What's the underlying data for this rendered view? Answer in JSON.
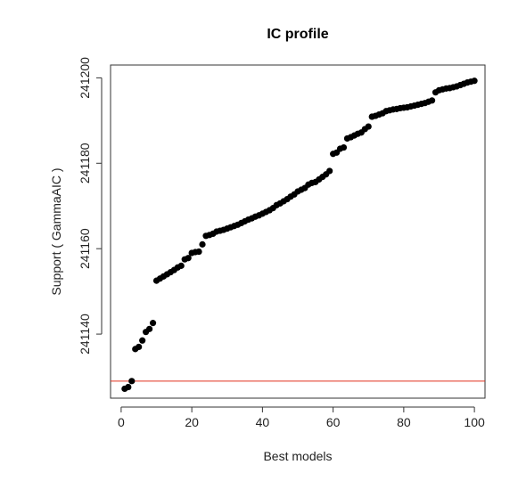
{
  "chart_data": {
    "type": "scatter",
    "title": "IC profile",
    "xlabel": "Best models",
    "ylabel": "Support ( GammaAIC )",
    "xlim": [
      -3,
      103
    ],
    "ylim": [
      241125,
      241203
    ],
    "x_ticks": [
      0,
      20,
      40,
      60,
      80,
      100
    ],
    "y_ticks": [
      241140,
      241160,
      241180,
      241200
    ],
    "grid": false,
    "point_color": "#000000",
    "reference_line": {
      "y": 241129,
      "color": "#e0301e"
    },
    "x": [
      1,
      2,
      3,
      4,
      5,
      6,
      7,
      8,
      9,
      10,
      11,
      12,
      13,
      14,
      15,
      16,
      17,
      18,
      19,
      20,
      21,
      22,
      23,
      24,
      25,
      26,
      27,
      28,
      29,
      30,
      31,
      32,
      33,
      34,
      35,
      36,
      37,
      38,
      39,
      40,
      41,
      42,
      43,
      44,
      45,
      46,
      47,
      48,
      49,
      50,
      51,
      52,
      53,
      54,
      55,
      56,
      57,
      58,
      59,
      60,
      61,
      62,
      63,
      64,
      65,
      66,
      67,
      68,
      69,
      70,
      71,
      72,
      73,
      74,
      75,
      76,
      77,
      78,
      79,
      80,
      81,
      82,
      83,
      84,
      85,
      86,
      87,
      88,
      89,
      90,
      91,
      92,
      93,
      94,
      95,
      96,
      97,
      98,
      99,
      100
    ],
    "y": [
      241127.2,
      241127.6,
      241129.0,
      241136.5,
      241137.0,
      241138.5,
      241140.5,
      241141.2,
      241142.6,
      241152.5,
      241153.0,
      241153.5,
      241154.0,
      241154.5,
      241155.0,
      241155.6,
      241156.0,
      241157.5,
      241157.8,
      241159.0,
      241159.2,
      241159.3,
      241161.0,
      241163.0,
      241163.2,
      241163.5,
      241164.0,
      241164.2,
      241164.4,
      241164.7,
      241165.0,
      241165.3,
      241165.6,
      241166.0,
      241166.4,
      241166.8,
      241167.1,
      241167.5,
      241167.8,
      241168.2,
      241168.6,
      241169.0,
      241169.5,
      241170.2,
      241170.6,
      241171.1,
      241171.6,
      241172.2,
      241172.7,
      241173.4,
      241173.8,
      241174.2,
      241175.0,
      241175.4,
      241175.6,
      241176.2,
      241176.8,
      241177.4,
      241178.2,
      241182.2,
      241182.5,
      241183.4,
      241183.7,
      241185.8,
      241186.1,
      241186.5,
      241186.9,
      241187.2,
      241188.0,
      241188.6,
      241190.9,
      241191.1,
      241191.4,
      241191.7,
      241192.2,
      241192.4,
      241192.6,
      241192.7,
      241192.9,
      241193.0,
      241193.1,
      241193.3,
      241193.5,
      241193.7,
      241193.9,
      241194.1,
      241194.4,
      241194.7,
      241196.6,
      241197.1,
      241197.3,
      241197.5,
      241197.6,
      241197.8,
      241198.0,
      241198.3,
      241198.6,
      241198.9,
      241199.1,
      241199.3
    ]
  }
}
